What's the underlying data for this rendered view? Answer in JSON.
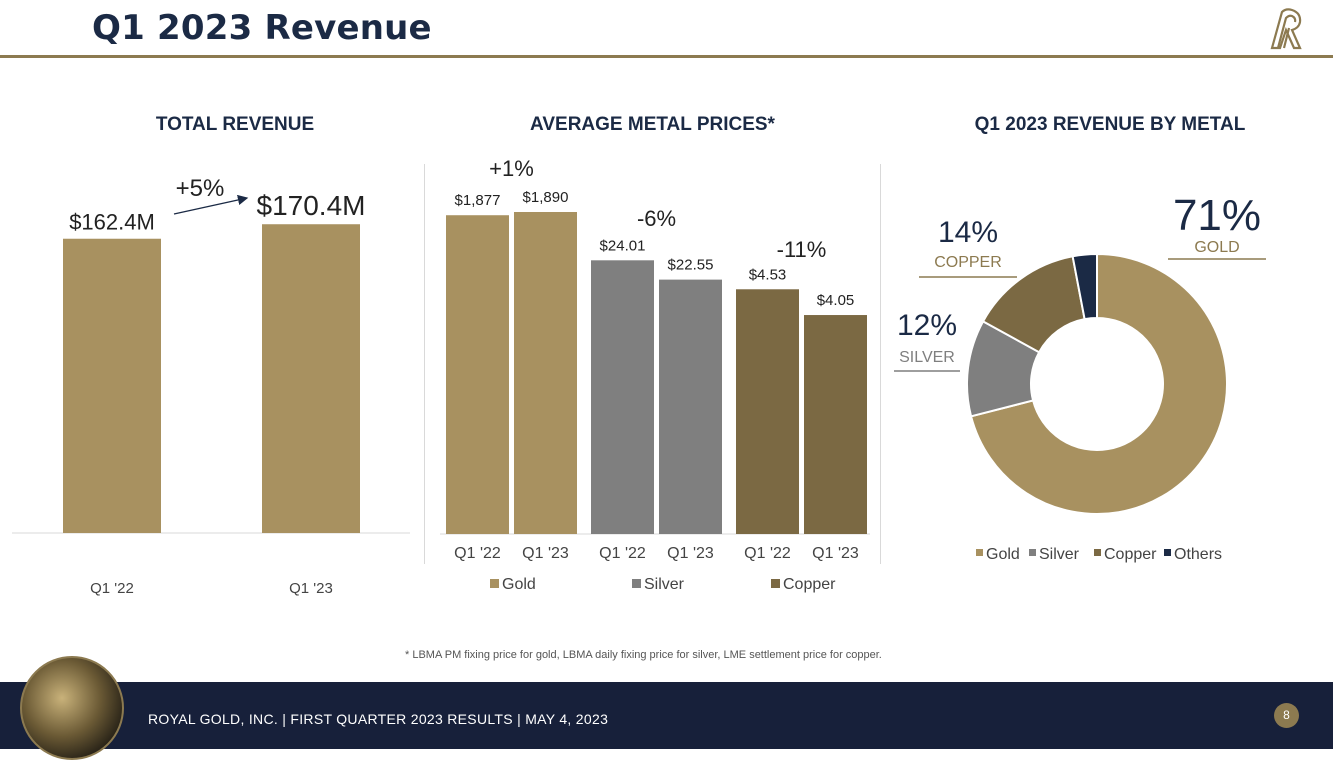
{
  "header": {
    "title": "Q1 2023 Revenue",
    "logo": "royal-gold-logo"
  },
  "footnote": "*   LBMA PM fixing price for gold, LBMA daily fixing price for silver, LME settlement price for copper.",
  "footer": {
    "text": "ROYAL GOLD, INC.   |   FIRST QUARTER 2023 RESULTS   |   MAY 4, 2023",
    "page_number": "8"
  },
  "colors": {
    "gold": "#a89160",
    "silver": "#7f7f7f",
    "copper": "#7b6943",
    "others": "#1b2a45",
    "navy": "#1b2a45"
  },
  "chart_data": [
    {
      "type": "bar",
      "title": "TOTAL REVENUE",
      "categories": [
        "Q1 '22",
        "Q1 '23"
      ],
      "values": [
        162.4,
        170.4
      ],
      "data_labels": [
        "$162.4M",
        "$170.4M"
      ],
      "change_label": "+5%",
      "ylim": [
        0,
        250
      ],
      "unit": "$M"
    },
    {
      "type": "bar",
      "title": "AVERAGE METAL PRICES*",
      "groups": [
        {
          "name": "Gold",
          "categories": [
            "Q1 '22",
            "Q1 '23"
          ],
          "values": [
            1877,
            1890
          ],
          "data_labels": [
            "$1,877",
            "$1,890"
          ],
          "change_label": "+1%",
          "relative_height": [
            0.99,
            1.0
          ]
        },
        {
          "name": "Silver",
          "categories": [
            "Q1 '22",
            "Q1 '23"
          ],
          "values": [
            24.01,
            22.55
          ],
          "data_labels": [
            "$24.01",
            "$22.55"
          ],
          "change_label": "-6%",
          "relative_height": [
            0.85,
            0.79
          ]
        },
        {
          "name": "Copper",
          "categories": [
            "Q1 '22",
            "Q1 '23"
          ],
          "values": [
            4.53,
            4.05
          ],
          "data_labels": [
            "$4.53",
            "$4.05"
          ],
          "change_label": "-11%",
          "relative_height": [
            0.76,
            0.68
          ]
        }
      ],
      "legend": [
        "Gold",
        "Silver",
        "Copper"
      ]
    },
    {
      "type": "pie",
      "title": "Q1 2023 REVENUE BY METAL",
      "labels": [
        "Gold",
        "Silver",
        "Copper",
        "Others"
      ],
      "values": [
        71,
        12,
        14,
        3
      ],
      "callouts": [
        {
          "name": "Gold",
          "pct": "71%",
          "label": "GOLD"
        },
        {
          "name": "Silver",
          "pct": "12%",
          "label": "SILVER"
        },
        {
          "name": "Copper",
          "pct": "14%",
          "label": "COPPER"
        }
      ],
      "legend": [
        "Gold",
        "Silver",
        "Copper",
        "Others"
      ]
    }
  ]
}
